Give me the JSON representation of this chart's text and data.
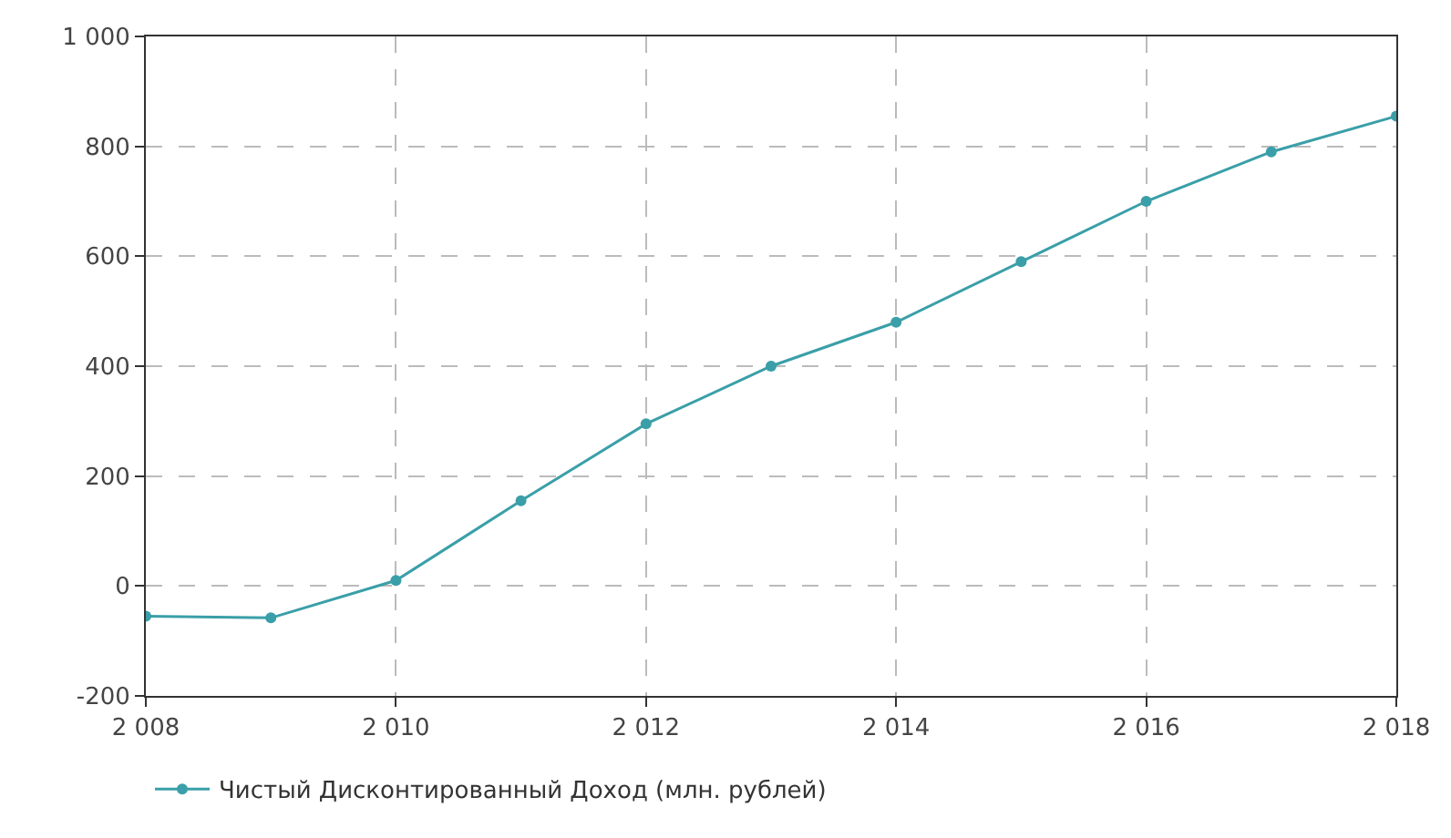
{
  "chart_data": {
    "type": "line",
    "x": [
      2008,
      2009,
      2010,
      2011,
      2012,
      2013,
      2014,
      2015,
      2016,
      2017,
      2018
    ],
    "series": [
      {
        "name": "Чистый Дисконтированный Доход (млн. рублей)",
        "color": "#3a9fa8",
        "values": [
          -55,
          -58,
          10,
          155,
          295,
          400,
          480,
          590,
          700,
          790,
          855
        ]
      }
    ],
    "xlim": [
      2008,
      2018
    ],
    "xticks": [
      {
        "value": 2008,
        "label": "2 008"
      },
      {
        "value": 2010,
        "label": "2 010"
      },
      {
        "value": 2012,
        "label": "2 012"
      },
      {
        "value": 2014,
        "label": "2 014"
      },
      {
        "value": 2016,
        "label": "2 016"
      },
      {
        "value": 2018,
        "label": "2 018"
      }
    ],
    "ylim": [
      -200,
      1000
    ],
    "yticks": [
      -200,
      0,
      200,
      400,
      600,
      800,
      {
        "value": 1000,
        "label": "1 000"
      }
    ],
    "grid": true,
    "legend": "bottom left",
    "marker": "circle",
    "line_style": "solid"
  }
}
